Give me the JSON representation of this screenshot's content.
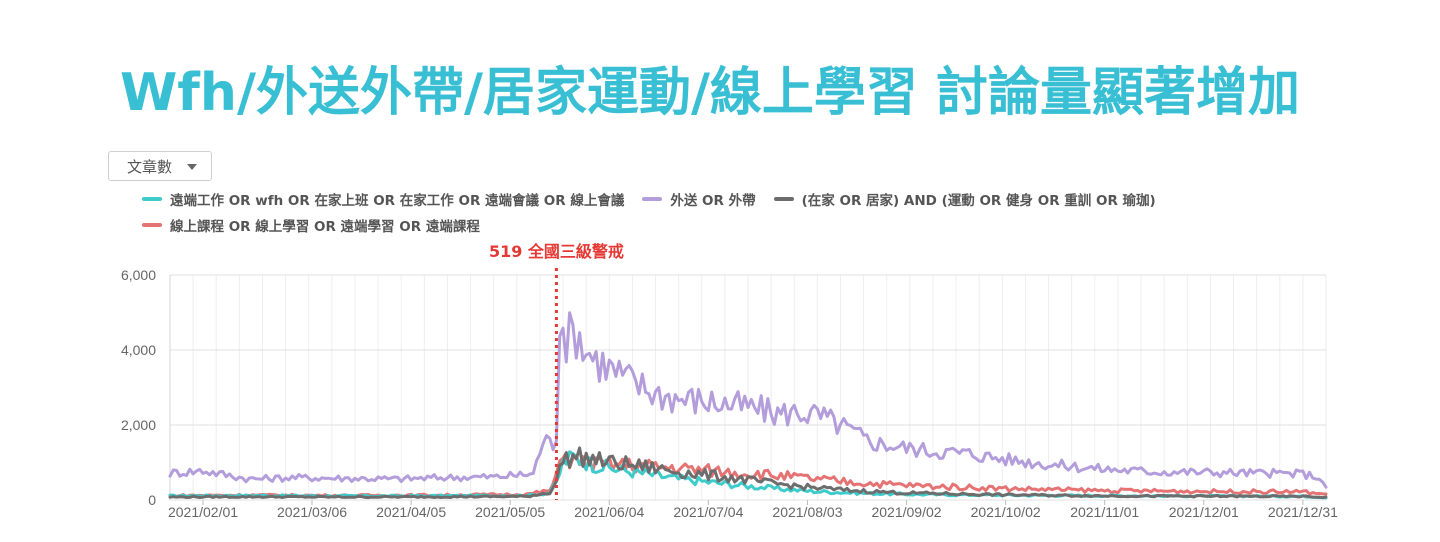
{
  "title": "Wfh/外送外帶/居家運動/線上學習 討論量顯著增加",
  "metric_selector": {
    "label": "文章數",
    "icon": "caret-down-icon"
  },
  "chart_data": {
    "type": "line",
    "title": "",
    "xlabel": "",
    "ylabel": "",
    "ylim": [
      0,
      6000
    ],
    "y_ticks": [
      "0",
      "2,000",
      "4,000",
      "6,000"
    ],
    "x_range": [
      "2021/01/22",
      "2022/01/07"
    ],
    "x_ticks": [
      "2021/02/01",
      "2021/03/06",
      "2021/04/05",
      "2021/05/05",
      "2021/06/04",
      "2021/07/04",
      "2021/08/03",
      "2021/09/02",
      "2021/10/02",
      "2021/11/01",
      "2021/12/01",
      "2021/12/31"
    ],
    "grid": true,
    "legend": "top-left",
    "annotations": [
      {
        "label": "519 全國三級警戒",
        "x": "2021/05/19",
        "color": "#e53935"
      }
    ],
    "series": [
      {
        "name": "遠端工作 OR wfh OR 在家上班 OR 在家工作 OR 遠端會議 OR 線上會議",
        "color": "#3ecbcb",
        "points": [
          [
            "2021/01/22",
            110
          ],
          [
            "2021/02/15",
            120
          ],
          [
            "2021/03/15",
            105
          ],
          [
            "2021/04/15",
            110
          ],
          [
            "2021/05/10",
            120
          ],
          [
            "2021/05/17",
            190
          ],
          [
            "2021/05/19",
            450
          ],
          [
            "2021/05/21",
            1000
          ],
          [
            "2021/05/24",
            1150
          ],
          [
            "2021/05/30",
            950
          ],
          [
            "2021/06/06",
            820
          ],
          [
            "2021/06/15",
            700
          ],
          [
            "2021/06/25",
            560
          ],
          [
            "2021/07/05",
            470
          ],
          [
            "2021/07/15",
            380
          ],
          [
            "2021/07/25",
            300
          ],
          [
            "2021/08/05",
            230
          ],
          [
            "2021/08/20",
            180
          ],
          [
            "2021/09/05",
            150
          ],
          [
            "2021/10/01",
            130
          ],
          [
            "2021/11/01",
            115
          ],
          [
            "2021/12/01",
            105
          ],
          [
            "2021/12/31",
            100
          ],
          [
            "2022/01/07",
            70
          ]
        ]
      },
      {
        "name": "外送 OR 外帶",
        "color": "#b39ddb",
        "points": [
          [
            "2021/01/22",
            720
          ],
          [
            "2021/02/01",
            780
          ],
          [
            "2021/02/15",
            560
          ],
          [
            "2021/03/01",
            600
          ],
          [
            "2021/03/15",
            580
          ],
          [
            "2021/04/01",
            560
          ],
          [
            "2021/04/15",
            600
          ],
          [
            "2021/05/01",
            620
          ],
          [
            "2021/05/12",
            700
          ],
          [
            "2021/05/15",
            1600
          ],
          [
            "2021/05/18",
            1500
          ],
          [
            "2021/05/19",
            1800
          ],
          [
            "2021/05/20",
            4950
          ],
          [
            "2021/05/22",
            4300
          ],
          [
            "2021/05/25",
            4500
          ],
          [
            "2021/05/28",
            4000
          ],
          [
            "2021/06/01",
            3700
          ],
          [
            "2021/06/06",
            3400
          ],
          [
            "2021/06/12",
            3100
          ],
          [
            "2021/06/18",
            2850
          ],
          [
            "2021/06/25",
            2700
          ],
          [
            "2021/07/02",
            2650
          ],
          [
            "2021/07/10",
            2550
          ],
          [
            "2021/07/18",
            2450
          ],
          [
            "2021/07/25",
            2300
          ],
          [
            "2021/08/01",
            2350
          ],
          [
            "2021/08/08",
            2200
          ],
          [
            "2021/08/15",
            1900
          ],
          [
            "2021/08/22",
            1550
          ],
          [
            "2021/09/01",
            1400
          ],
          [
            "2021/09/10",
            1300
          ],
          [
            "2021/09/20",
            1250
          ],
          [
            "2021/10/01",
            1100
          ],
          [
            "2021/10/15",
            950
          ],
          [
            "2021/11/01",
            820
          ],
          [
            "2021/11/15",
            760
          ],
          [
            "2021/12/01",
            740
          ],
          [
            "2021/12/15",
            720
          ],
          [
            "2021/12/31",
            700
          ],
          [
            "2022/01/05",
            600
          ],
          [
            "2022/01/07",
            300
          ]
        ]
      },
      {
        "name": "(在家 OR 居家) AND (運動 OR 健身 OR 重訓 OR 瑜珈)",
        "color": "#6d6d6d",
        "points": [
          [
            "2021/01/22",
            80
          ],
          [
            "2021/02/15",
            85
          ],
          [
            "2021/03/15",
            80
          ],
          [
            "2021/04/15",
            85
          ],
          [
            "2021/05/10",
            95
          ],
          [
            "2021/05/17",
            200
          ],
          [
            "2021/05/19",
            500
          ],
          [
            "2021/05/21",
            1100
          ],
          [
            "2021/05/26",
            1150
          ],
          [
            "2021/06/01",
            1050
          ],
          [
            "2021/06/06",
            980
          ],
          [
            "2021/06/12",
            920
          ],
          [
            "2021/06/20",
            820
          ],
          [
            "2021/06/30",
            700
          ],
          [
            "2021/07/10",
            600
          ],
          [
            "2021/07/20",
            480
          ],
          [
            "2021/08/01",
            360
          ],
          [
            "2021/08/15",
            260
          ],
          [
            "2021/09/01",
            190
          ],
          [
            "2021/10/01",
            140
          ],
          [
            "2021/11/01",
            110
          ],
          [
            "2021/12/01",
            100
          ],
          [
            "2021/12/31",
            95
          ],
          [
            "2022/01/07",
            70
          ]
        ]
      },
      {
        "name": "線上課程 OR 線上學習 OR 遠端學習 OR 遠端課程",
        "color": "#e57373",
        "points": [
          [
            "2021/01/22",
            120
          ],
          [
            "2021/02/15",
            130
          ],
          [
            "2021/03/15",
            120
          ],
          [
            "2021/04/15",
            130
          ],
          [
            "2021/05/10",
            150
          ],
          [
            "2021/05/17",
            250
          ],
          [
            "2021/05/19",
            600
          ],
          [
            "2021/05/21",
            1400
          ],
          [
            "2021/05/23",
            1050
          ],
          [
            "2021/05/30",
            950
          ],
          [
            "2021/06/06",
            950
          ],
          [
            "2021/06/15",
            900
          ],
          [
            "2021/06/25",
            850
          ],
          [
            "2021/07/05",
            780
          ],
          [
            "2021/07/15",
            720
          ],
          [
            "2021/07/25",
            650
          ],
          [
            "2021/08/05",
            560
          ],
          [
            "2021/08/20",
            450
          ],
          [
            "2021/09/05",
            380
          ],
          [
            "2021/09/20",
            340
          ],
          [
            "2021/10/05",
            300
          ],
          [
            "2021/11/01",
            250
          ],
          [
            "2021/12/01",
            230
          ],
          [
            "2021/12/31",
            220
          ],
          [
            "2022/01/07",
            150
          ]
        ]
      }
    ]
  }
}
